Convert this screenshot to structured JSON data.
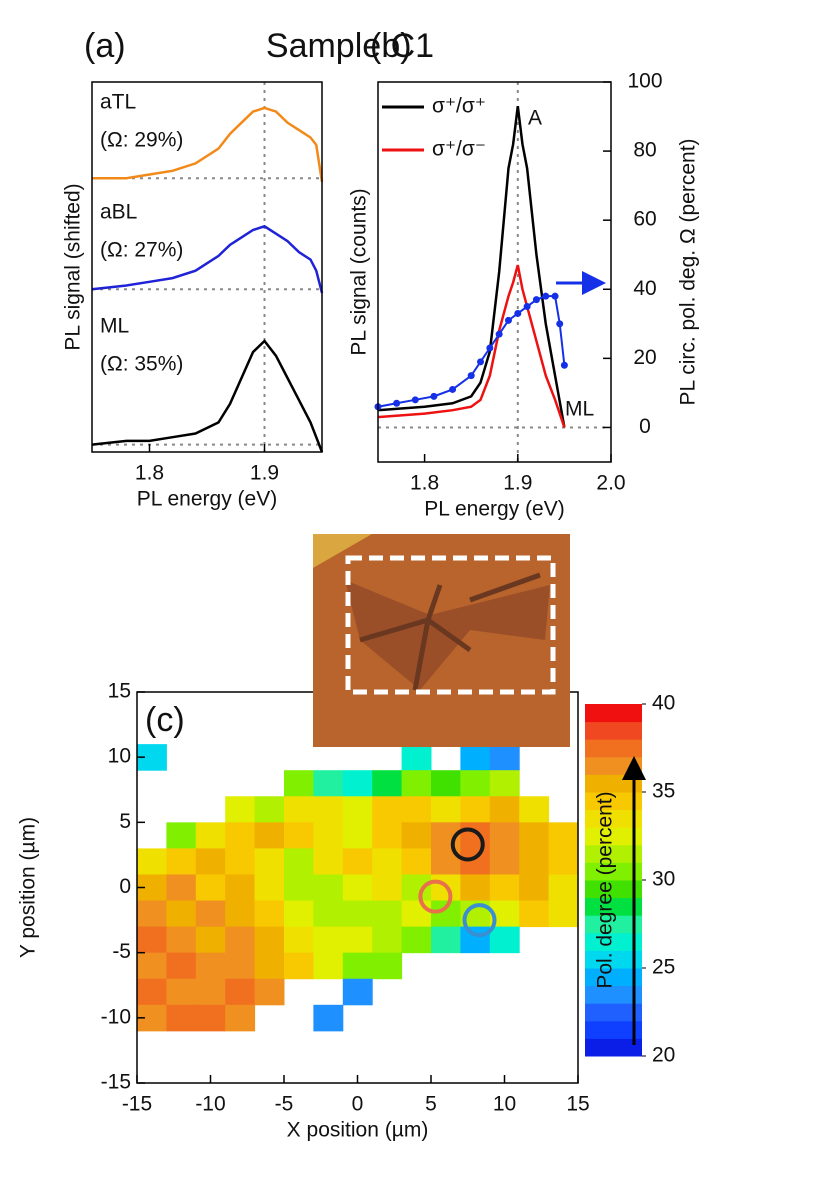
{
  "figure_title": "Sample C1",
  "chart_data": [
    {
      "type": "line",
      "panel": "(a)",
      "xlabel": "PL energy (eV)",
      "ylabel": "PL signal (shifted)",
      "xlim": [
        1.75,
        1.95
      ],
      "xticks": [
        1.8,
        1.9
      ],
      "ylim": [
        0,
        100
      ],
      "vline": 1.9,
      "x": [
        1.75,
        1.78,
        1.8,
        1.82,
        1.84,
        1.86,
        1.87,
        1.88,
        1.89,
        1.9,
        1.91,
        1.92,
        1.93,
        1.94,
        1.945,
        1.95
      ],
      "series": [
        {
          "name": "aTL",
          "note": "(Ω: 29%)",
          "color": "#f28a1a",
          "baseline": 74,
          "values": [
            74,
            74,
            75,
            76,
            78,
            82,
            86,
            89,
            92,
            93,
            92,
            89,
            87,
            85,
            83,
            73
          ]
        },
        {
          "name": "aBL",
          "note": "(Ω: 27%)",
          "color": "#1f22d6",
          "baseline": 44,
          "values": [
            44,
            45,
            46,
            47,
            49,
            53,
            56,
            58,
            60,
            61,
            59,
            57,
            54,
            52,
            49,
            43
          ]
        },
        {
          "name": "ML",
          "note": "(Ω: 35%)",
          "color": "#000000",
          "baseline": 2,
          "values": [
            2,
            3,
            3,
            4,
            5,
            8,
            13,
            20,
            27,
            30,
            26,
            20,
            14,
            8,
            4,
            0
          ]
        }
      ]
    },
    {
      "type": "line",
      "panel": "(b)",
      "xlabel": "PL energy (eV)",
      "ylabel": "PL signal (counts)",
      "y2label": "PL circ. pol. deg. Ω (percent)",
      "xlim": [
        1.75,
        2.0
      ],
      "xticks": [
        1.8,
        1.9,
        {
          "value": 2.0,
          "label": "2.0"
        }
      ],
      "ylim": [
        -10,
        100
      ],
      "y2lim": [
        -10,
        100
      ],
      "y2ticks": [
        0,
        20,
        40,
        60,
        80,
        100
      ],
      "vline": 1.9,
      "hline": 0,
      "annotations": [
        "A",
        "ML"
      ],
      "series": [
        {
          "name": "σ⁺/σ⁺",
          "color": "#000000",
          "x": [
            1.75,
            1.8,
            1.83,
            1.85,
            1.86,
            1.87,
            1.88,
            1.89,
            1.895,
            1.9,
            1.905,
            1.91,
            1.92,
            1.93,
            1.94,
            1.95
          ],
          "values": [
            5,
            6,
            7,
            9,
            13,
            22,
            45,
            75,
            82,
            93,
            82,
            75,
            50,
            30,
            15,
            0
          ]
        },
        {
          "name": "σ⁺/σ⁻",
          "color": "#ee1111",
          "x": [
            1.75,
            1.8,
            1.83,
            1.85,
            1.86,
            1.87,
            1.88,
            1.89,
            1.895,
            1.9,
            1.905,
            1.91,
            1.92,
            1.93,
            1.94,
            1.95
          ],
          "values": [
            3,
            4,
            5,
            6,
            8,
            15,
            28,
            38,
            42,
            47,
            40,
            35,
            25,
            15,
            8,
            0
          ]
        },
        {
          "color": "#1530e6",
          "axis": "y2",
          "markers": true,
          "x": [
            1.75,
            1.77,
            1.79,
            1.81,
            1.83,
            1.85,
            1.86,
            1.87,
            1.88,
            1.89,
            1.9,
            1.91,
            1.92,
            1.93,
            1.94,
            1.945,
            1.95
          ],
          "values": [
            6,
            7,
            8,
            9,
            11,
            15,
            19,
            23,
            27,
            31,
            33,
            35,
            37,
            38,
            38,
            30,
            18
          ]
        }
      ]
    },
    {
      "type": "heatmap",
      "panel": "(c)",
      "xlabel": "X position (µm)",
      "ylabel": "Y position (µm)",
      "clabel": "Pol. degree (percent)",
      "xlim": [
        -15,
        15
      ],
      "xticks": [
        -15,
        -10,
        -5,
        0,
        5,
        10,
        15
      ],
      "ylim": [
        -15,
        15
      ],
      "yticks": [
        -15,
        -10,
        -5,
        0,
        5,
        10,
        15
      ],
      "clim": [
        20,
        40
      ],
      "cticks": [
        20,
        25,
        30,
        35,
        40
      ],
      "colormap": [
        "#0a1ee8",
        "#1040ff",
        "#2060ff",
        "#1e90ff",
        "#00b0ff",
        "#00d8f0",
        "#00f0d0",
        "#20f0a0",
        "#00e040",
        "#40e000",
        "#80f000",
        "#b0f000",
        "#e0f000",
        "#f0e000",
        "#f8c800",
        "#f0b000",
        "#f09020",
        "#f07020",
        "#f04820",
        "#f01010"
      ],
      "x": [
        -14,
        -12,
        -10,
        -8,
        -6,
        -4,
        -2,
        0,
        2,
        4,
        6,
        8,
        10,
        12,
        14
      ],
      "y": [
        10,
        8,
        6,
        4,
        2,
        0,
        -2,
        -4,
        -6,
        -8,
        -10
      ],
      "values": [
        [
          25,
          null,
          null,
          null,
          null,
          null,
          null,
          null,
          null,
          26,
          null,
          24,
          23,
          null,
          null
        ],
        [
          null,
          null,
          null,
          null,
          null,
          30,
          27,
          26,
          28,
          30,
          29,
          30,
          31,
          null,
          null
        ],
        [
          null,
          null,
          null,
          32,
          31,
          33,
          33,
          32,
          34,
          34,
          33,
          34,
          35,
          33,
          null
        ],
        [
          null,
          30,
          33,
          34,
          35,
          34,
          33,
          32,
          34,
          35,
          36,
          37,
          36,
          35,
          34
        ],
        [
          33,
          34,
          35,
          34,
          33,
          31,
          33,
          34,
          33,
          34,
          36,
          37,
          36,
          35,
          34
        ],
        [
          35,
          36,
          34,
          35,
          33,
          31,
          31,
          32,
          33,
          31,
          33,
          35,
          34,
          35,
          33
        ],
        [
          36,
          35,
          36,
          35,
          34,
          32,
          31,
          31,
          31,
          32,
          30,
          31,
          32,
          34,
          33
        ],
        [
          37,
          36,
          35,
          36,
          35,
          33,
          32,
          32,
          31,
          30,
          27,
          24,
          26,
          null,
          null
        ],
        [
          36,
          37,
          36,
          36,
          35,
          34,
          32,
          30,
          30,
          null,
          null,
          null,
          null,
          null,
          null
        ],
        [
          37,
          36,
          36,
          37,
          36,
          null,
          null,
          23,
          null,
          null,
          null,
          null,
          null,
          null,
          null
        ],
        [
          36,
          37,
          37,
          36,
          null,
          null,
          23,
          null,
          null,
          null,
          null,
          null,
          null,
          null,
          null
        ]
      ],
      "markers": [
        {
          "x": 7.5,
          "y": 3.3,
          "color": "#1a1a1a"
        },
        {
          "x": 5.3,
          "y": -0.7,
          "color": "#e8704a"
        },
        {
          "x": 8.3,
          "y": -2.5,
          "color": "#3a8fd0"
        }
      ]
    }
  ]
}
